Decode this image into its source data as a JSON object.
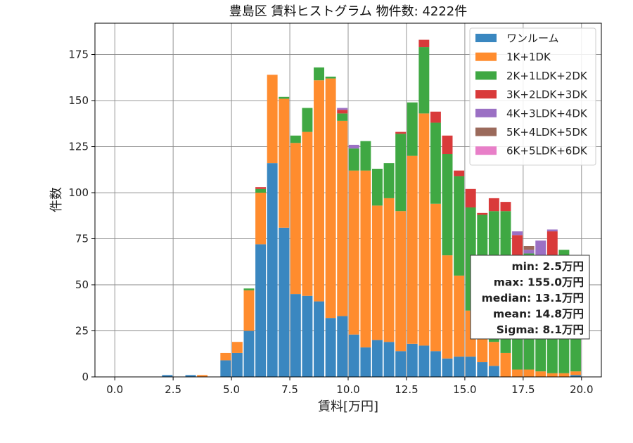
{
  "chart_data": {
    "type": "bar",
    "stacked": true,
    "title": "豊島区 賃料ヒストグラム  物件数: 4222件",
    "xlabel": "賃料[万円]",
    "ylabel": "件数",
    "xlim": [
      -0.85,
      20.85
    ],
    "ylim": [
      0,
      192
    ],
    "xticks": [
      0.0,
      2.5,
      5.0,
      7.5,
      10.0,
      12.5,
      15.0,
      17.5,
      20.0
    ],
    "xtick_labels": [
      "0.0",
      "2.5",
      "5.0",
      "7.5",
      "10.0",
      "12.5",
      "15.0",
      "17.5",
      "20.0"
    ],
    "yticks": [
      0,
      25,
      50,
      75,
      100,
      125,
      150,
      175
    ],
    "ytick_labels": [
      "0",
      "25",
      "50",
      "75",
      "100",
      "125",
      "150",
      "175"
    ],
    "grid": true,
    "legend_position": "top-right",
    "bin_width": 0.5,
    "x": [
      2.25,
      2.75,
      3.25,
      3.75,
      4.25,
      4.75,
      5.25,
      5.75,
      6.25,
      6.75,
      7.25,
      7.75,
      8.25,
      8.75,
      9.25,
      9.75,
      10.25,
      10.75,
      11.25,
      11.75,
      12.25,
      12.75,
      13.25,
      13.75,
      14.25,
      14.75,
      15.25,
      15.75,
      16.25,
      16.75,
      17.25,
      17.75,
      18.25,
      18.75,
      19.25,
      19.75
    ],
    "series": [
      {
        "name": "ワンルーム",
        "color": "#3a87c0",
        "values": [
          1,
          0,
          1,
          0,
          0,
          9,
          13,
          25,
          72,
          116,
          81,
          45,
          44,
          41,
          32,
          33,
          23,
          16,
          20,
          19,
          14,
          18,
          17,
          14,
          10,
          11,
          11,
          8,
          6,
          0,
          0,
          0,
          0,
          0,
          0,
          1
        ]
      },
      {
        "name": "1K+1DK",
        "color": "#ff8c2e",
        "values": [
          0,
          0,
          0,
          1,
          0,
          4,
          6,
          22,
          28,
          48,
          70,
          82,
          89,
          120,
          130,
          106,
          89,
          96,
          73,
          78,
          76,
          102,
          126,
          80,
          56,
          44,
          25,
          20,
          13,
          13,
          4,
          4,
          3,
          2,
          2,
          2
        ]
      },
      {
        "name": "2K+1LDK+2DK",
        "color": "#3fa843",
        "values": [
          0,
          0,
          0,
          0,
          0,
          0,
          0,
          1,
          2,
          0,
          1,
          4,
          13,
          7,
          1,
          4,
          12,
          16,
          20,
          19,
          42,
          29,
          36,
          44,
          55,
          54,
          56,
          60,
          71,
          77,
          60,
          63,
          50,
          59,
          67,
          39
        ]
      },
      {
        "name": "3K+2LDK+3DK",
        "color": "#d93a3a",
        "values": [
          0,
          0,
          0,
          0,
          0,
          0,
          0,
          0,
          1,
          0,
          0,
          0,
          0,
          0,
          0,
          2,
          0,
          0,
          0,
          0,
          1,
          0,
          4,
          6,
          10,
          3,
          10,
          1,
          7,
          5,
          13,
          0,
          12,
          18,
          0,
          0
        ]
      },
      {
        "name": "4K+3LDK+4DK",
        "color": "#9b70c4",
        "values": [
          0,
          0,
          0,
          0,
          0,
          0,
          0,
          0,
          0,
          0,
          0,
          0,
          0,
          0,
          0,
          1,
          2,
          0,
          0,
          0,
          0,
          0,
          0,
          0,
          0,
          0,
          0,
          0,
          0,
          0,
          2,
          2,
          9,
          1,
          0,
          0
        ]
      },
      {
        "name": "5K+4LDK+5DK",
        "color": "#9b6a5b",
        "values": [
          0,
          0,
          0,
          0,
          0,
          0,
          0,
          0,
          0,
          0,
          0,
          0,
          0,
          0,
          0,
          0,
          0,
          0,
          0,
          0,
          0,
          0,
          0,
          0,
          0,
          0,
          0,
          0,
          0,
          0,
          0,
          2,
          0,
          0,
          0,
          0
        ]
      },
      {
        "name": "6K+5LDK+6DK",
        "color": "#e87fc8",
        "values": [
          0,
          0,
          0,
          0,
          0,
          0,
          0,
          0,
          0,
          0,
          0,
          0,
          0,
          0,
          0,
          0,
          0,
          0,
          0,
          0,
          0,
          0,
          0,
          0,
          0,
          0,
          0,
          0,
          0,
          0,
          0,
          0,
          0,
          0,
          0,
          0
        ]
      }
    ],
    "stats": {
      "lines": [
        "min: 2.5万円",
        "max: 155.0万円",
        "median: 13.1万円",
        "mean: 14.8万円",
        "Sigma: 8.1万円"
      ]
    }
  }
}
